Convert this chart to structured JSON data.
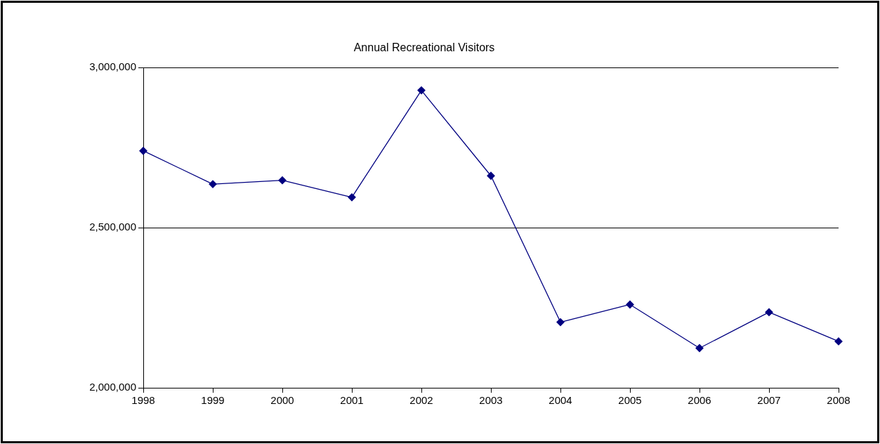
{
  "chart_data": {
    "type": "line",
    "title": "Annual Recreational Visitors",
    "categories": [
      "1998",
      "1999",
      "2000",
      "2001",
      "2002",
      "2003",
      "2004",
      "2005",
      "2006",
      "2007",
      "2008"
    ],
    "series": [
      {
        "color": "#000080",
        "values": [
          2740000,
          2636000,
          2648000,
          2595000,
          2929000,
          2662000,
          2205000,
          2260000,
          2124000,
          2236000,
          2145000
        ]
      }
    ],
    "ylim": [
      2000000,
      3000000
    ],
    "yticks": [
      {
        "value": 2000000,
        "label": "2,000,000"
      },
      {
        "value": 2500000,
        "label": "2,500,000"
      },
      {
        "value": 3000000,
        "label": "3,000,000"
      }
    ],
    "grid": "y",
    "legend": false,
    "marker": "diamond",
    "line_style": "solid"
  }
}
